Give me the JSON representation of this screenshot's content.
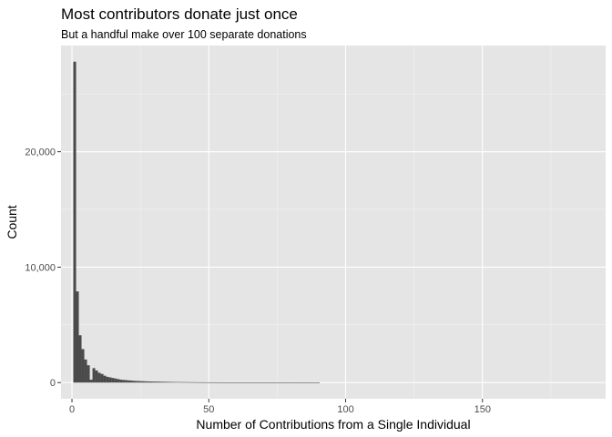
{
  "chart_data": {
    "type": "bar",
    "title": "Most contributors donate just once",
    "subtitle": "But a handful make over 100 separate donations",
    "xlabel": "Number of Contributions from a Single Individual",
    "ylabel": "Count",
    "xlim": [
      -4,
      195
    ],
    "ylim": [
      -1400,
      29200
    ],
    "grid": true,
    "x_ticks": [
      0,
      50,
      100,
      150
    ],
    "x_tick_labels": [
      "0",
      "50",
      "100",
      "150"
    ],
    "y_ticks": [
      0,
      10000,
      20000
    ],
    "y_tick_labels": [
      "0",
      "10,000",
      "20,000"
    ],
    "bin_width": 1,
    "x": [
      1,
      2,
      3,
      4,
      5,
      6,
      7,
      8,
      9,
      10,
      11,
      12,
      13,
      14,
      15,
      16,
      17,
      18,
      19,
      20,
      21,
      22,
      23,
      24,
      25,
      26,
      27,
      28,
      29,
      30,
      31,
      32,
      33,
      34,
      35,
      36,
      37,
      38,
      39,
      40,
      41,
      42,
      43,
      44,
      45,
      46,
      47,
      48,
      49,
      50,
      51,
      52,
      53,
      54,
      55,
      56,
      57,
      58,
      59,
      60,
      61,
      62,
      63,
      64,
      65,
      66,
      67,
      68,
      69,
      70,
      71,
      72,
      73,
      74,
      75,
      76,
      77,
      78,
      79,
      80,
      81,
      82,
      83,
      84,
      85,
      86,
      87,
      88,
      89,
      90
    ],
    "values": [
      27800,
      7900,
      4100,
      2900,
      2000,
      1500,
      250,
      1250,
      1050,
      850,
      750,
      600,
      500,
      450,
      400,
      350,
      300,
      250,
      230,
      210,
      190,
      170,
      150,
      140,
      130,
      120,
      110,
      100,
      95,
      90,
      85,
      80,
      75,
      70,
      65,
      60,
      55,
      50,
      48,
      45,
      42,
      40,
      38,
      36,
      34,
      32,
      30,
      28,
      26,
      25,
      24,
      23,
      22,
      21,
      20,
      19,
      18,
      17,
      16,
      15,
      14,
      13,
      12,
      11,
      10,
      10,
      9,
      9,
      8,
      8,
      7,
      7,
      6,
      6,
      5,
      5,
      5,
      4,
      4,
      4,
      3,
      3,
      3,
      3,
      2,
      2,
      2,
      2,
      2,
      2
    ]
  },
  "colors": {
    "panel_background": "#e5e5e5",
    "grid_major": "#ffffff",
    "grid_minor": "#f2f2f2",
    "bar_fill": "#4a4a4a",
    "tick_color": "#333333"
  }
}
